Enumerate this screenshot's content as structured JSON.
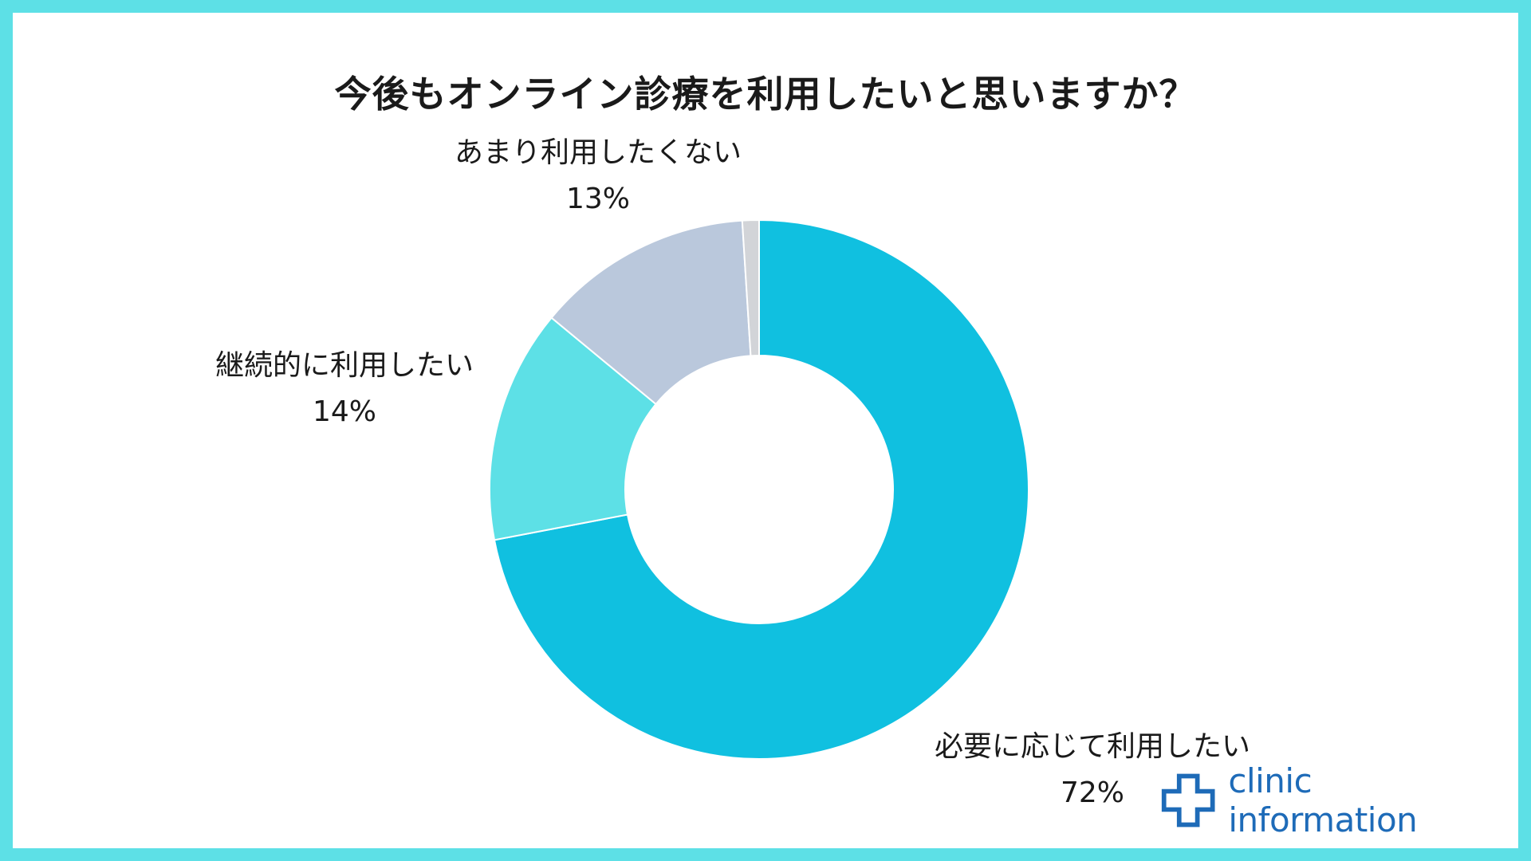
{
  "title": "今後もオンライン診療を利用したいと思いますか？",
  "chart_data": {
    "type": "pie",
    "donut": true,
    "start_angle_deg": 0,
    "direction": "clockwise",
    "slices": [
      {
        "label": "必要に応じて利用したい",
        "value": 72,
        "display": "72%",
        "color": "#10c0e0"
      },
      {
        "label": "継続的に利用したい",
        "value": 14,
        "display": "14%",
        "color": "#5de0e6"
      },
      {
        "label": "あまり利用したくない",
        "value": 13,
        "display": "13%",
        "color": "#bac8dc"
      },
      {
        "label": "",
        "value": 1,
        "display": "",
        "color": "#d2d4d8"
      }
    ]
  },
  "logo": {
    "text": "clinic information",
    "color": "#1e6bb8"
  },
  "frame_color": "#5de0e6"
}
